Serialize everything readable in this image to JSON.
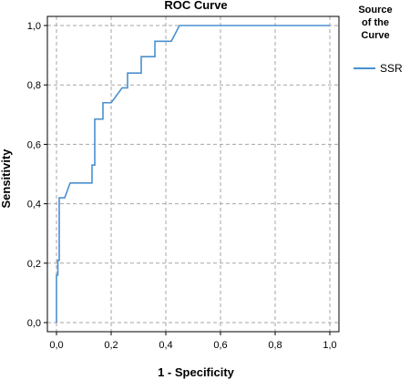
{
  "chart_data": {
    "type": "line",
    "title": "ROC Curve",
    "xlabel": "1 - Specificity",
    "ylabel": "Sensitivity",
    "xlim": [
      0,
      1
    ],
    "ylim": [
      0,
      1
    ],
    "grid": true,
    "x_ticks": [
      "0,0",
      "0,2",
      "0,4",
      "0,6",
      "0,8",
      "1,0"
    ],
    "y_ticks": [
      "0,0",
      "0,2",
      "0,4",
      "0,6",
      "0,8",
      "1,0"
    ],
    "legend": {
      "title_lines": [
        "Source",
        "of the",
        "Curve"
      ],
      "placement": "right"
    },
    "series": [
      {
        "name": "SSR",
        "color": "#4a90d0",
        "x": [
          0.0,
          0.0,
          0.005,
          0.005,
          0.01,
          0.01,
          0.02,
          0.03,
          0.05,
          0.13,
          0.13,
          0.14,
          0.14,
          0.17,
          0.17,
          0.18,
          0.18,
          0.2,
          0.24,
          0.25,
          0.25,
          0.26,
          0.26,
          0.29,
          0.29,
          0.31,
          0.31,
          0.34,
          0.34,
          0.36,
          0.36,
          0.38,
          0.38,
          0.41,
          0.41,
          0.42,
          0.45,
          0.47,
          0.8,
          1.0
        ],
        "y": [
          0.0,
          0.16,
          0.16,
          0.21,
          0.21,
          0.42,
          0.42,
          0.42,
          0.47,
          0.47,
          0.53,
          0.53,
          0.685,
          0.685,
          0.74,
          0.74,
          0.74,
          0.74,
          0.79,
          0.79,
          0.79,
          0.79,
          0.84,
          0.84,
          0.84,
          0.84,
          0.895,
          0.895,
          0.895,
          0.895,
          0.947,
          0.947,
          0.947,
          0.947,
          0.947,
          0.947,
          1.0,
          1.0,
          1.0,
          1.0
        ]
      }
    ]
  }
}
